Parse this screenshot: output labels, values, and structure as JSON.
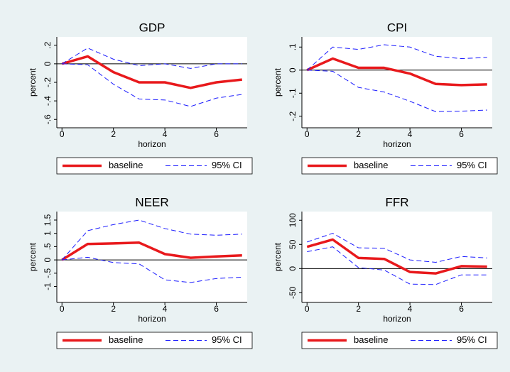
{
  "chart_data": [
    {
      "type": "line",
      "title": "GDP",
      "x_label": "horizon",
      "y_label": "percent",
      "x": [
        0,
        1,
        2,
        3,
        4,
        5,
        6,
        7
      ],
      "xlim": [
        -0.2,
        7.2
      ],
      "xticks": [
        0,
        2,
        4,
        6
      ],
      "ylim": [
        -0.69,
        0.29
      ],
      "yticks": [
        {
          "value": 0.2,
          "label": ".2"
        },
        0,
        {
          "value": -0.2,
          "label": "-.2"
        },
        {
          "value": -0.4,
          "label": "-.4"
        },
        {
          "value": -0.6,
          "label": "-.6"
        }
      ],
      "series": [
        {
          "name": "baseline",
          "color": "#e8191c",
          "values": [
            0,
            0.08,
            -0.09,
            -0.2,
            -0.2,
            -0.26,
            -0.2,
            -0.17
          ]
        },
        {
          "name": "95% CI",
          "color": "#1a1aff",
          "upper": [
            0,
            0.17,
            0.05,
            -0.02,
            0,
            -0.05,
            0,
            0
          ],
          "lower": [
            0,
            -0.01,
            -0.22,
            -0.38,
            -0.39,
            -0.46,
            -0.37,
            -0.33
          ]
        }
      ]
    },
    {
      "type": "line",
      "title": "CPI",
      "x_label": "horizon",
      "y_label": "percent",
      "x": [
        0,
        1,
        2,
        3,
        4,
        5,
        6,
        7
      ],
      "xlim": [
        -0.2,
        7.2
      ],
      "xticks": [
        0,
        2,
        4,
        6
      ],
      "ylim": [
        -0.25,
        0.144
      ],
      "yticks": [
        {
          "value": 0.1,
          "label": ".1"
        },
        0,
        {
          "value": -0.1,
          "label": "-.1"
        },
        {
          "value": -0.2,
          "label": "-.2"
        }
      ],
      "series": [
        {
          "name": "baseline",
          "color": "#e8191c",
          "values": [
            0,
            0.05,
            0.01,
            0.01,
            -0.015,
            -0.06,
            -0.065,
            -0.062
          ]
        },
        {
          "name": "95% CI",
          "color": "#1a1aff",
          "upper": [
            0,
            0.1,
            0.09,
            0.11,
            0.1,
            0.06,
            0.05,
            0.055
          ],
          "lower": [
            0,
            -0.005,
            -0.075,
            -0.095,
            -0.135,
            -0.18,
            -0.178,
            -0.173
          ]
        }
      ]
    },
    {
      "type": "line",
      "title": "NEER",
      "x_label": "horizon",
      "y_label": "percent",
      "x": [
        0,
        1,
        2,
        3,
        4,
        5,
        6,
        7
      ],
      "xlim": [
        -0.2,
        7.2
      ],
      "xticks": [
        0,
        2,
        4,
        6
      ],
      "ylim": [
        -1.6,
        1.82
      ],
      "yticks": [
        1.5,
        1,
        {
          "value": 0.5,
          "label": ".5"
        },
        0,
        {
          "value": -0.5,
          "label": "-.5"
        },
        -1
      ],
      "series": [
        {
          "name": "baseline",
          "color": "#e8191c",
          "values": [
            0,
            0.6,
            0.62,
            0.65,
            0.22,
            0.08,
            0.13,
            0.17
          ]
        },
        {
          "name": "95% CI",
          "color": "#1a1aff",
          "upper": [
            0,
            1.1,
            1.33,
            1.5,
            1.18,
            0.97,
            0.93,
            0.97
          ],
          "lower": [
            0,
            0.1,
            -0.1,
            -0.15,
            -0.75,
            -0.85,
            -0.7,
            -0.65
          ]
        }
      ]
    },
    {
      "type": "line",
      "title": "FFR",
      "x_label": "horizon",
      "y_label": "percent",
      "x": [
        0,
        1,
        2,
        3,
        4,
        5,
        6,
        7
      ],
      "xlim": [
        -0.2,
        7.2
      ],
      "xticks": [
        0,
        2,
        4,
        6
      ],
      "ylim": [
        -70,
        118
      ],
      "yticks": [
        100,
        50,
        0,
        -50
      ],
      "series": [
        {
          "name": "baseline",
          "color": "#e8191c",
          "values": [
            45,
            60,
            22,
            20,
            -7,
            -10,
            5,
            4
          ]
        },
        {
          "name": "95% CI",
          "color": "#1a1aff",
          "upper": [
            55,
            73,
            43,
            42,
            18,
            13,
            25,
            22
          ],
          "lower": [
            35,
            45,
            2,
            -3,
            -32,
            -33,
            -13,
            -13
          ]
        }
      ]
    }
  ]
}
